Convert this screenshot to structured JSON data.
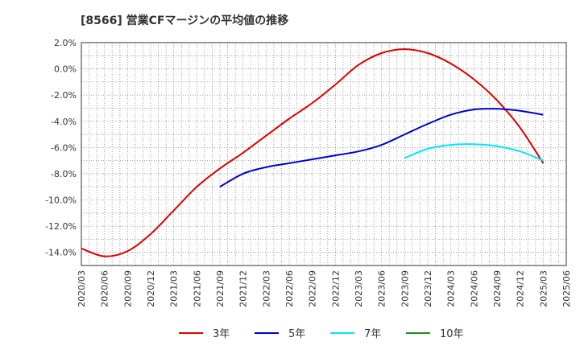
{
  "chart_data": {
    "type": "line",
    "title": "[8566]  営業CFマージンの平均値の推移",
    "xlabel": "",
    "ylabel": "",
    "ylim": [
      -15,
      2
    ],
    "y_ticks": [
      2,
      0,
      -2,
      -4,
      -6,
      -8,
      -10,
      -12,
      -14
    ],
    "y_tick_labels": [
      "2.0%",
      "0.0%",
      "-2.0%",
      "-4.0%",
      "-6.0%",
      "-8.0%",
      "-10.0%",
      "-12.0%",
      "-14.0%"
    ],
    "x_tick_labels": [
      "2020/03",
      "2020/06",
      "2020/09",
      "2020/12",
      "2021/03",
      "2021/06",
      "2021/09",
      "2021/12",
      "2022/03",
      "2022/06",
      "2022/09",
      "2022/12",
      "2023/03",
      "2023/06",
      "2023/09",
      "2023/12",
      "2024/03",
      "2024/06",
      "2024/09",
      "2024/12",
      "2025/03",
      "2025/06"
    ],
    "grid": true,
    "legend_position": "bottom",
    "series": [
      {
        "name": "3年",
        "color": "#dd0000",
        "values": [
          {
            "x": "2020/03",
            "y": -13.7
          },
          {
            "x": "2020/06",
            "y": -14.3
          },
          {
            "x": "2020/09",
            "y": -13.9
          },
          {
            "x": "2020/12",
            "y": -12.6
          },
          {
            "x": "2021/03",
            "y": -10.8
          },
          {
            "x": "2021/06",
            "y": -9.0
          },
          {
            "x": "2021/09",
            "y": -7.6
          },
          {
            "x": "2021/12",
            "y": -6.4
          },
          {
            "x": "2022/03",
            "y": -5.1
          },
          {
            "x": "2022/06",
            "y": -3.8
          },
          {
            "x": "2022/09",
            "y": -2.6
          },
          {
            "x": "2022/12",
            "y": -1.2
          },
          {
            "x": "2023/03",
            "y": 0.3
          },
          {
            "x": "2023/06",
            "y": 1.2
          },
          {
            "x": "2023/09",
            "y": 1.5
          },
          {
            "x": "2023/12",
            "y": 1.2
          },
          {
            "x": "2024/03",
            "y": 0.4
          },
          {
            "x": "2024/06",
            "y": -0.8
          },
          {
            "x": "2024/09",
            "y": -2.4
          },
          {
            "x": "2024/12",
            "y": -4.5
          },
          {
            "x": "2025/03",
            "y": -7.2
          }
        ]
      },
      {
        "name": "5年",
        "color": "#0000cc",
        "values": [
          {
            "x": "2021/09",
            "y": -9.0
          },
          {
            "x": "2021/12",
            "y": -8.0
          },
          {
            "x": "2022/03",
            "y": -7.5
          },
          {
            "x": "2022/06",
            "y": -7.2
          },
          {
            "x": "2022/09",
            "y": -6.9
          },
          {
            "x": "2022/12",
            "y": -6.6
          },
          {
            "x": "2023/03",
            "y": -6.3
          },
          {
            "x": "2023/06",
            "y": -5.8
          },
          {
            "x": "2023/09",
            "y": -5.0
          },
          {
            "x": "2023/12",
            "y": -4.2
          },
          {
            "x": "2024/03",
            "y": -3.5
          },
          {
            "x": "2024/06",
            "y": -3.1
          },
          {
            "x": "2024/09",
            "y": -3.05
          },
          {
            "x": "2024/12",
            "y": -3.2
          },
          {
            "x": "2025/03",
            "y": -3.5
          }
        ]
      },
      {
        "name": "7年",
        "color": "#00e5ff",
        "values": [
          {
            "x": "2023/09",
            "y": -6.8
          },
          {
            "x": "2023/12",
            "y": -6.1
          },
          {
            "x": "2024/03",
            "y": -5.8
          },
          {
            "x": "2024/06",
            "y": -5.75
          },
          {
            "x": "2024/09",
            "y": -5.9
          },
          {
            "x": "2024/12",
            "y": -6.3
          },
          {
            "x": "2025/03",
            "y": -7.0
          }
        ]
      },
      {
        "name": "10年",
        "color": "#228b22",
        "values": []
      }
    ]
  }
}
